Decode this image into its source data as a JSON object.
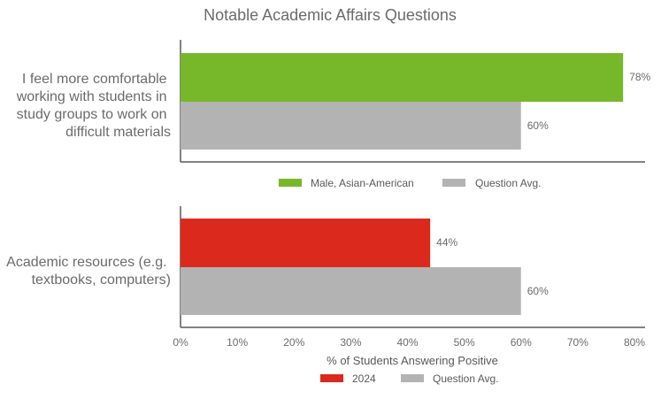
{
  "chart_data": {
    "type": "bar",
    "orientation": "horizontal",
    "title": "Notable Academic Affairs Questions",
    "xlabel": "% of Students Answering Positive",
    "xlim": [
      0,
      80
    ],
    "x_ticks": [
      "0%",
      "10%",
      "20%",
      "30%",
      "40%",
      "50%",
      "60%",
      "70%",
      "80%"
    ],
    "panels": [
      {
        "category_lines": [
          "I feel more comfortable",
          "working with students in",
          "study groups to work on",
          "difficult materials"
        ],
        "series": [
          {
            "name": "Male, Asian-American",
            "value": 78,
            "label": "78%",
            "color": "#76b82a"
          },
          {
            "name": "Question Avg.",
            "value": 60,
            "label": "60%",
            "color": "#b3b3b3"
          }
        ]
      },
      {
        "category_lines": [
          "Academic resources (e.g.",
          "textbooks, computers)"
        ],
        "series": [
          {
            "name": "2024",
            "value": 44,
            "label": "44%",
            "color": "#dc291e"
          },
          {
            "name": "Question Avg.",
            "value": 60,
            "label": "60%",
            "color": "#b3b3b3"
          }
        ]
      }
    ]
  }
}
